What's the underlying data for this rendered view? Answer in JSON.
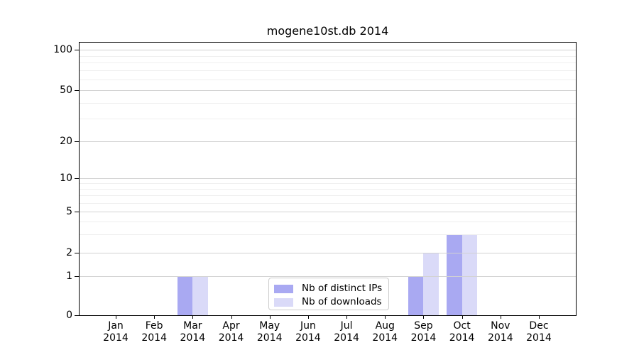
{
  "chart_data": {
    "type": "bar",
    "title": "mogene10st.db 2014",
    "categories": [
      "Jan",
      "Feb",
      "Mar",
      "Apr",
      "May",
      "Jun",
      "Jul",
      "Aug",
      "Sep",
      "Oct",
      "Nov",
      "Dec"
    ],
    "x_year_label": "2014",
    "series": [
      {
        "name": "Nb of distinct IPs",
        "color": "#a9a9f2",
        "values": [
          0,
          0,
          1,
          0,
          0,
          0,
          0,
          0,
          1,
          3,
          0,
          0
        ]
      },
      {
        "name": "Nb of downloads",
        "color": "#dadaf8",
        "values": [
          0,
          0,
          1,
          0,
          0,
          0,
          0,
          0,
          2,
          3,
          0,
          0
        ]
      }
    ],
    "xlabel": "",
    "ylabel": "",
    "yscale": "symlog",
    "ylim": [
      0,
      110
    ],
    "yticks": [
      0,
      1,
      2,
      5,
      10,
      20,
      50,
      100
    ],
    "yticks_minor": [
      3,
      4,
      6,
      7,
      8,
      9,
      30,
      40,
      60,
      70,
      80,
      90
    ],
    "grid": true,
    "grid_color_major": "#d2d2d2",
    "grid_color_minor": "#efefef",
    "legend_position": "bottom-center",
    "legend": [
      "Nb of distinct IPs",
      "Nb of downloads"
    ],
    "background_color": "#ffffff"
  }
}
